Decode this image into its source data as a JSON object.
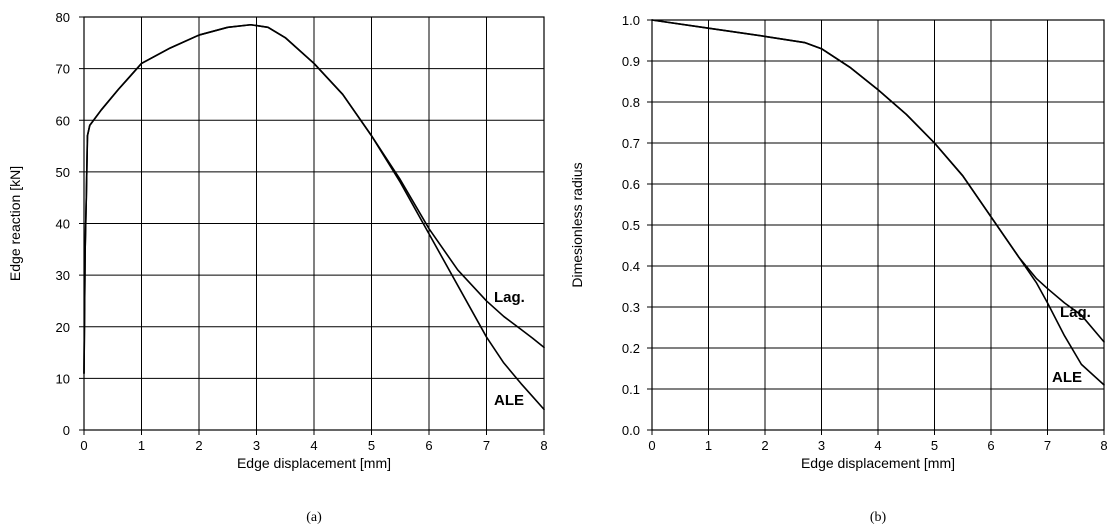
{
  "chart_data": [
    {
      "type": "line",
      "caption": "(a)",
      "xlabel": "Edge displacement [mm]",
      "ylabel": "Edge reaction [kN]",
      "xlim": [
        0,
        8
      ],
      "ylim": [
        0,
        80
      ],
      "xticks": [
        0,
        1,
        2,
        3,
        4,
        5,
        6,
        7,
        8
      ],
      "yticks": [
        0,
        10,
        20,
        30,
        40,
        50,
        60,
        70,
        80
      ],
      "grid": true,
      "series": [
        {
          "name": "ALE",
          "x": [
            0,
            0.02,
            0.04,
            0.06,
            0.1,
            0.3,
            0.6,
            1.0,
            1.5,
            2.0,
            2.5,
            2.9,
            3.2,
            3.5,
            4.0,
            4.5,
            5.0,
            5.5,
            6.0,
            6.5,
            7.0,
            7.3,
            7.6,
            7.8,
            8.0
          ],
          "y": [
            11,
            35,
            45,
            57,
            59,
            62,
            66,
            71,
            74,
            76.5,
            78,
            78.5,
            78,
            76,
            71,
            65,
            57,
            48,
            38,
            28,
            18,
            13,
            9,
            6.5,
            4
          ]
        },
        {
          "name": "Lag.",
          "x": [
            0,
            0.02,
            0.04,
            0.06,
            0.1,
            0.3,
            0.6,
            1.0,
            1.5,
            2.0,
            2.5,
            2.9,
            3.2,
            3.5,
            4.0,
            4.5,
            5.0,
            5.5,
            6.0,
            6.5,
            7.0,
            7.3,
            7.6,
            7.8,
            8.0
          ],
          "y": [
            11,
            35,
            45,
            57,
            59,
            62,
            66,
            71,
            74,
            76.5,
            78,
            78.5,
            78,
            76,
            71,
            65,
            57,
            48.5,
            39,
            31,
            25,
            22,
            19.5,
            17.8,
            16
          ]
        }
      ]
    },
    {
      "type": "line",
      "caption": "(b)",
      "xlabel": "Edge displacement [mm]",
      "ylabel": "Dimesionless radius",
      "xlim": [
        0,
        8
      ],
      "ylim": [
        0,
        1
      ],
      "xticks": [
        0,
        1,
        2,
        3,
        4,
        5,
        6,
        7,
        8
      ],
      "yticks": [
        "0.0",
        "0.1",
        "0.2",
        "0.3",
        "0.4",
        "0.5",
        "0.6",
        "0.7",
        "0.8",
        "0.9",
        "1.0"
      ],
      "grid": true,
      "series": [
        {
          "name": "ALE",
          "x": [
            0,
            1,
            2,
            2.7,
            3.0,
            3.5,
            4.0,
            4.5,
            5.0,
            5.5,
            6.0,
            6.5,
            6.8,
            7.0,
            7.3,
            7.6,
            8.0
          ],
          "y": [
            1.0,
            0.98,
            0.96,
            0.945,
            0.93,
            0.885,
            0.83,
            0.77,
            0.7,
            0.62,
            0.52,
            0.42,
            0.36,
            0.31,
            0.23,
            0.16,
            0.11
          ]
        },
        {
          "name": "Lag.",
          "x": [
            0,
            1,
            2,
            2.7,
            3.0,
            3.5,
            4.0,
            4.5,
            5.0,
            5.5,
            6.0,
            6.5,
            6.8,
            7.0,
            7.3,
            7.6,
            8.0
          ],
          "y": [
            1.0,
            0.98,
            0.96,
            0.945,
            0.93,
            0.885,
            0.83,
            0.77,
            0.7,
            0.62,
            0.52,
            0.42,
            0.37,
            0.345,
            0.31,
            0.28,
            0.215
          ]
        }
      ]
    }
  ]
}
